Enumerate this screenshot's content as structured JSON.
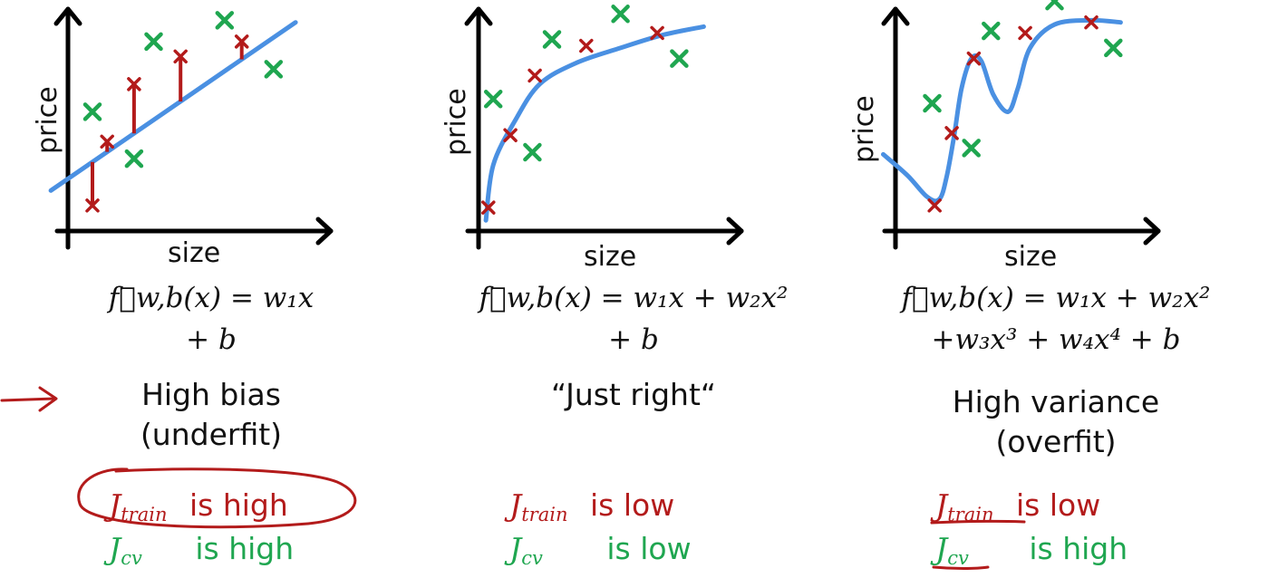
{
  "colors": {
    "fit_line": "#4a90e2",
    "train": "#b31b1b",
    "cv": "#1fa650",
    "axis": "#000000",
    "annotation": "#b31b1b"
  },
  "chart_data": [
    {
      "type": "scatter",
      "xlabel": "size",
      "ylabel": "price",
      "xlim": [
        0,
        10
      ],
      "ylim": [
        0,
        10
      ],
      "fit": "line",
      "fit_curve": [
        [
          -0.7,
          1.9
        ],
        [
          9.3,
          9.8
        ]
      ],
      "train_points": [
        [
          1.0,
          1.2
        ],
        [
          1.6,
          4.2
        ],
        [
          2.7,
          6.9
        ],
        [
          4.6,
          8.2
        ],
        [
          7.1,
          8.9
        ]
      ],
      "cv_points": [
        [
          1.0,
          5.6
        ],
        [
          2.7,
          3.4
        ],
        [
          3.5,
          8.9
        ],
        [
          6.4,
          9.9
        ],
        [
          8.4,
          7.6
        ]
      ],
      "error_bars": true,
      "formula_line1": "f⃗w,b(x) = w₁x",
      "formula_line2": "+ b",
      "verdict": [
        "High bias",
        "(underfit)"
      ],
      "errors": [
        {
          "symbol": "J",
          "sub": "train",
          "text": "is high",
          "circled": true,
          "underlined": false
        },
        {
          "symbol": "J",
          "sub": "cv",
          "text": "is high",
          "circled": false,
          "underlined": false
        }
      ]
    },
    {
      "type": "scatter",
      "xlabel": "size",
      "ylabel": "price",
      "xlim": [
        0,
        10
      ],
      "ylim": [
        0,
        10
      ],
      "fit": "quadratic",
      "fit_curve": [
        [
          0.3,
          0.5
        ],
        [
          0.6,
          3.1
        ],
        [
          1.5,
          5.2
        ],
        [
          2.5,
          6.9
        ],
        [
          4.0,
          7.9
        ],
        [
          5.8,
          8.6
        ],
        [
          7.5,
          9.2
        ],
        [
          9.2,
          9.6
        ]
      ],
      "train_points": [
        [
          0.4,
          1.1
        ],
        [
          1.3,
          4.5
        ],
        [
          2.3,
          7.3
        ],
        [
          4.4,
          8.7
        ],
        [
          7.3,
          9.3
        ]
      ],
      "cv_points": [
        [
          0.6,
          6.2
        ],
        [
          2.2,
          3.7
        ],
        [
          3.0,
          9.0
        ],
        [
          5.8,
          10.2
        ],
        [
          8.2,
          8.1
        ]
      ],
      "error_bars": false,
      "formula_line1": "f⃗w,b(x) = w₁x + w₂x²",
      "formula_line2": "+ b",
      "verdict": [
        "“Just right“"
      ],
      "errors": [
        {
          "symbol": "J",
          "sub": "train",
          "text": "is low",
          "circled": false,
          "underlined": false
        },
        {
          "symbol": "J",
          "sub": "cv",
          "text": "is low",
          "circled": false,
          "underlined": false
        }
      ]
    },
    {
      "type": "scatter",
      "xlabel": "size",
      "ylabel": "price",
      "xlim": [
        0,
        10
      ],
      "ylim": [
        0,
        10
      ],
      "fit": "4th-order polynomial",
      "fit_curve": [
        [
          -0.5,
          3.6
        ],
        [
          0.5,
          2.6
        ],
        [
          1.3,
          1.6
        ],
        [
          1.8,
          1.5
        ],
        [
          2.1,
          2.6
        ],
        [
          2.4,
          4.5
        ],
        [
          2.7,
          6.7
        ],
        [
          3.1,
          8.1
        ],
        [
          3.5,
          8.0
        ],
        [
          4.0,
          6.4
        ],
        [
          4.6,
          5.6
        ],
        [
          5.0,
          6.7
        ],
        [
          5.5,
          8.6
        ],
        [
          6.5,
          9.7
        ],
        [
          8.0,
          9.9
        ],
        [
          9.2,
          9.8
        ]
      ],
      "train_points": [
        [
          1.6,
          1.2
        ],
        [
          2.3,
          4.6
        ],
        [
          3.2,
          8.1
        ],
        [
          5.3,
          9.3
        ],
        [
          8.0,
          9.8
        ]
      ],
      "cv_points": [
        [
          1.5,
          6.0
        ],
        [
          3.1,
          3.9
        ],
        [
          3.9,
          9.4
        ],
        [
          6.5,
          10.8
        ],
        [
          8.9,
          8.6
        ]
      ],
      "error_bars": false,
      "formula_line1": "f⃗w,b(x) = w₁x + w₂x²",
      "formula_line2": "+w₃x³ + w₄x⁴ + b",
      "verdict": [
        "High variance",
        "(overfit)"
      ],
      "errors": [
        {
          "symbol": "J",
          "sub": "train",
          "text": "is low",
          "circled": false,
          "underlined": true
        },
        {
          "symbol": "J",
          "sub": "cv",
          "text": "is high",
          "circled": false,
          "underlined": true
        }
      ]
    }
  ]
}
